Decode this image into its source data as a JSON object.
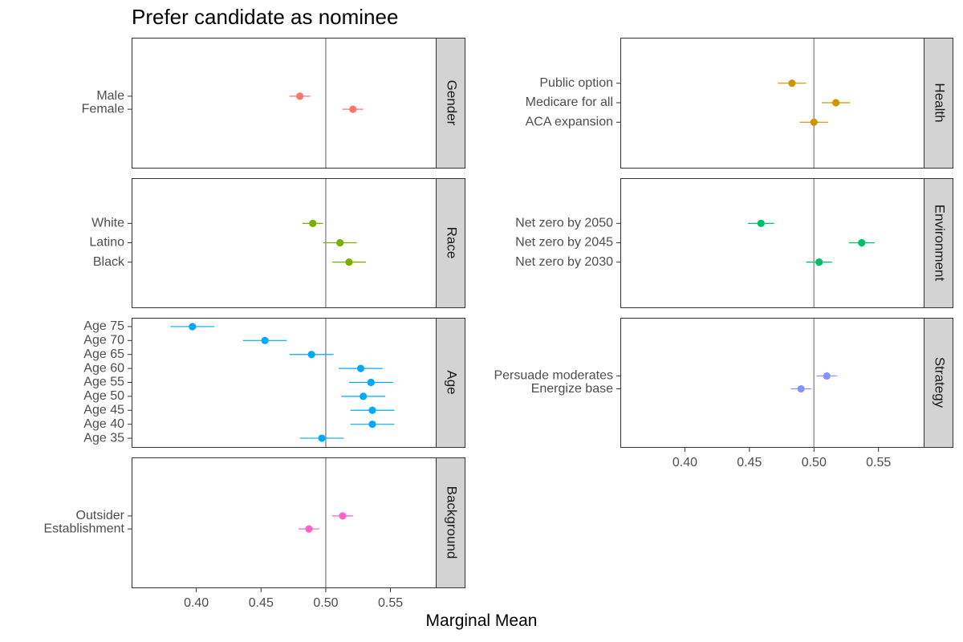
{
  "chart_data": {
    "type": "scatter",
    "title": "Prefer candidate as nominee",
    "xlabel": "Marginal Mean",
    "ylabel": "",
    "xlim": [
      0.35,
      0.585
    ],
    "x_ticks": [
      "0.40",
      "0.45",
      "0.50",
      "0.55"
    ],
    "reference_line": 0.5,
    "grid": false,
    "legend": "none",
    "panels": [
      {
        "name": "Gender",
        "color": "#F8766D",
        "points": [
          {
            "label": "Male",
            "x": 0.48,
            "lo": 0.472,
            "hi": 0.488
          },
          {
            "label": "Female",
            "x": 0.521,
            "lo": 0.513,
            "hi": 0.529
          }
        ]
      },
      {
        "name": "Race",
        "color": "#7CAE00",
        "points": [
          {
            "label": "White",
            "x": 0.49,
            "lo": 0.482,
            "hi": 0.498
          },
          {
            "label": "Latino",
            "x": 0.511,
            "lo": 0.498,
            "hi": 0.524
          },
          {
            "label": "Black",
            "x": 0.518,
            "lo": 0.505,
            "hi": 0.531
          }
        ]
      },
      {
        "name": "Age",
        "color": "#00A9FF",
        "points": [
          {
            "label": "Age 75",
            "x": 0.397,
            "lo": 0.38,
            "hi": 0.414
          },
          {
            "label": "Age 70",
            "x": 0.453,
            "lo": 0.436,
            "hi": 0.47
          },
          {
            "label": "Age 65",
            "x": 0.489,
            "lo": 0.472,
            "hi": 0.506
          },
          {
            "label": "Age 60",
            "x": 0.527,
            "lo": 0.51,
            "hi": 0.544
          },
          {
            "label": "Age 55",
            "x": 0.535,
            "lo": 0.518,
            "hi": 0.552
          },
          {
            "label": "Age 50",
            "x": 0.529,
            "lo": 0.512,
            "hi": 0.546
          },
          {
            "label": "Age 45",
            "x": 0.536,
            "lo": 0.519,
            "hi": 0.553
          },
          {
            "label": "Age 40",
            "x": 0.536,
            "lo": 0.519,
            "hi": 0.553
          },
          {
            "label": "Age 35",
            "x": 0.497,
            "lo": 0.48,
            "hi": 0.514
          }
        ]
      },
      {
        "name": "Background",
        "color": "#FF61CC",
        "points": [
          {
            "label": "Outsider",
            "x": 0.513,
            "lo": 0.505,
            "hi": 0.521
          },
          {
            "label": "Establishment",
            "x": 0.487,
            "lo": 0.479,
            "hi": 0.495
          }
        ]
      },
      {
        "name": "Health",
        "color": "#CD9600",
        "points": [
          {
            "label": "Public option",
            "x": 0.483,
            "lo": 0.472,
            "hi": 0.494
          },
          {
            "label": "Medicare for all",
            "x": 0.517,
            "lo": 0.506,
            "hi": 0.528
          },
          {
            "label": "ACA expansion",
            "x": 0.5,
            "lo": 0.489,
            "hi": 0.511
          }
        ]
      },
      {
        "name": "Environment",
        "color": "#00BE67",
        "points": [
          {
            "label": "Net zero by 2050",
            "x": 0.459,
            "lo": 0.449,
            "hi": 0.469
          },
          {
            "label": "Net zero by 2045",
            "x": 0.537,
            "lo": 0.527,
            "hi": 0.547
          },
          {
            "label": "Net zero by 2030",
            "x": 0.504,
            "lo": 0.494,
            "hi": 0.514
          }
        ]
      },
      {
        "name": "Strategy",
        "color": "#8494FF",
        "points": [
          {
            "label": "Persuade moderates",
            "x": 0.51,
            "lo": 0.502,
            "hi": 0.518
          },
          {
            "label": "Energize base",
            "x": 0.49,
            "lo": 0.482,
            "hi": 0.498
          }
        ]
      }
    ]
  }
}
